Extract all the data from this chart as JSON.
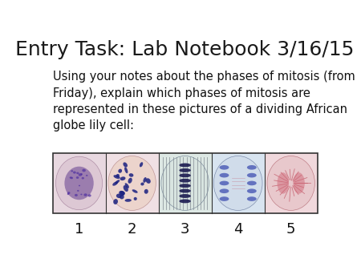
{
  "title": "Entry Task: Lab Notebook 3/16/15",
  "body_text": "Using your notes about the phases of mitosis (from\nFriday), explain which phases of mitosis are\nrepresented in these pictures of a dividing African\nglobe lily cell:",
  "image_labels": [
    "1",
    "2",
    "3",
    "4",
    "5"
  ],
  "background_color": "#ffffff",
  "title_fontsize": 18,
  "body_fontsize": 10.5,
  "label_fontsize": 13,
  "title_color": "#1a1a1a",
  "body_color": "#111111",
  "label_color": "#111111",
  "border_color": "#333333"
}
